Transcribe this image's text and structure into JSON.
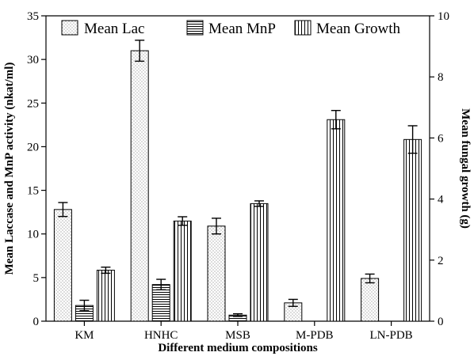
{
  "chart_data": {
    "type": "bar",
    "xlabel": "Different medium compositions",
    "ylabel": "Mean Laccase and MnP activity (nkat/ml)",
    "y2label": "Mean fungal growth (g)",
    "categories": [
      "KM",
      "HNHC",
      "MSB",
      "M-PDB",
      "LN-PDB"
    ],
    "ylim": [
      0,
      35
    ],
    "y2lim": [
      0,
      10
    ],
    "yticks": [
      "0",
      "5",
      "10",
      "15",
      "20",
      "25",
      "30",
      "35"
    ],
    "y2ticks": [
      "0",
      "2",
      "4",
      "6",
      "8",
      "10"
    ],
    "series": [
      {
        "name": "Mean Lac",
        "axis": "left",
        "pattern": "dots",
        "values": [
          12.8,
          31.0,
          10.9,
          2.1,
          4.9
        ],
        "errors": [
          0.8,
          1.2,
          0.9,
          0.4,
          0.5
        ]
      },
      {
        "name": "Mean MnP",
        "axis": "left",
        "pattern": "horizontal",
        "values": [
          1.8,
          4.2,
          0.7,
          null,
          null
        ],
        "errors": [
          0.6,
          0.6,
          0.15,
          null,
          null
        ]
      },
      {
        "name": "Mean Growth",
        "axis": "right",
        "pattern": "vertical",
        "values": [
          1.67,
          3.28,
          3.85,
          6.6,
          5.95
        ],
        "errors": [
          0.1,
          0.14,
          0.09,
          0.3,
          0.45
        ]
      }
    ],
    "legend": "top",
    "grid": false
  }
}
